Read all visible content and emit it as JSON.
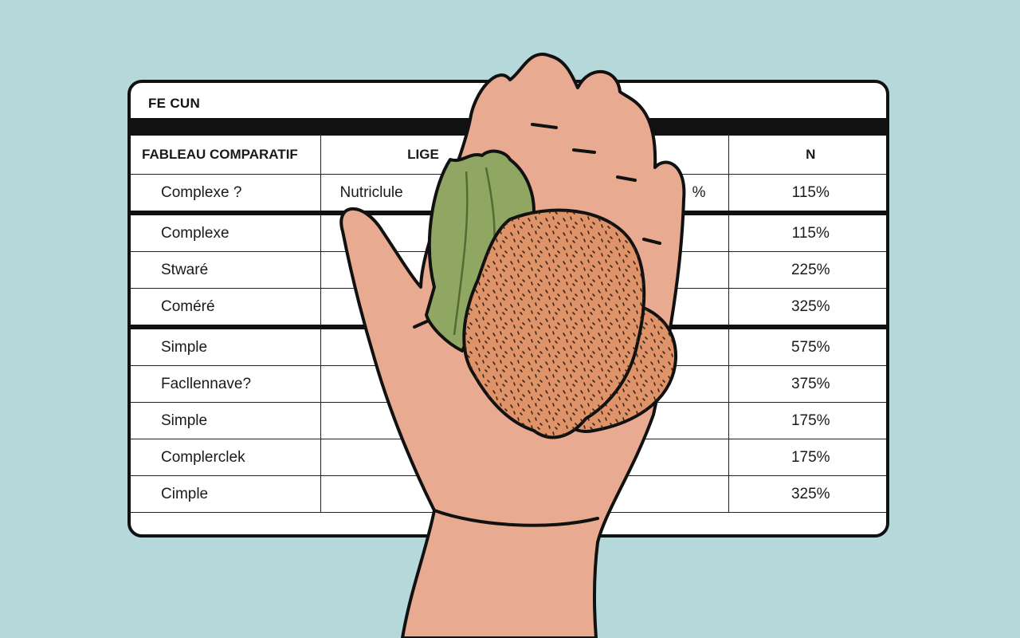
{
  "table": {
    "title": "FE CUN",
    "headers": [
      "FABLEAU COMPARATIF",
      "LIGE",
      "",
      "N"
    ],
    "rows": [
      {
        "name": "Complexe ?",
        "col2": "Nutriclule",
        "col3": "%",
        "value": "115%"
      },
      {
        "name": "Complexe",
        "col2": "",
        "col3": "",
        "value": "115%"
      },
      {
        "name": "Stwaré",
        "col2": "",
        "col3": "",
        "value": "225%"
      },
      {
        "name": "Coméré",
        "col2": "",
        "col3": "",
        "value": "325%"
      },
      {
        "name": "Simple",
        "col2": "",
        "col3": "",
        "value": "575%"
      },
      {
        "name": "Facllennave?",
        "col2": "",
        "col3": "",
        "value": "375%"
      },
      {
        "name": "Simple",
        "col2": "",
        "col3": "",
        "value": "175%"
      },
      {
        "name": "Complerclek",
        "col2": "",
        "col3": "",
        "value": "175%"
      },
      {
        "name": "Cimple",
        "col2": "",
        "col3": "",
        "value": "325%"
      }
    ]
  },
  "illustration": {
    "subject": "hand-holding-food-icon",
    "colors": {
      "background": "#b5d9da",
      "skin": "#e8ab91",
      "leaf": "#8fa762",
      "nugget": "#de9468",
      "outline": "#111111"
    }
  }
}
